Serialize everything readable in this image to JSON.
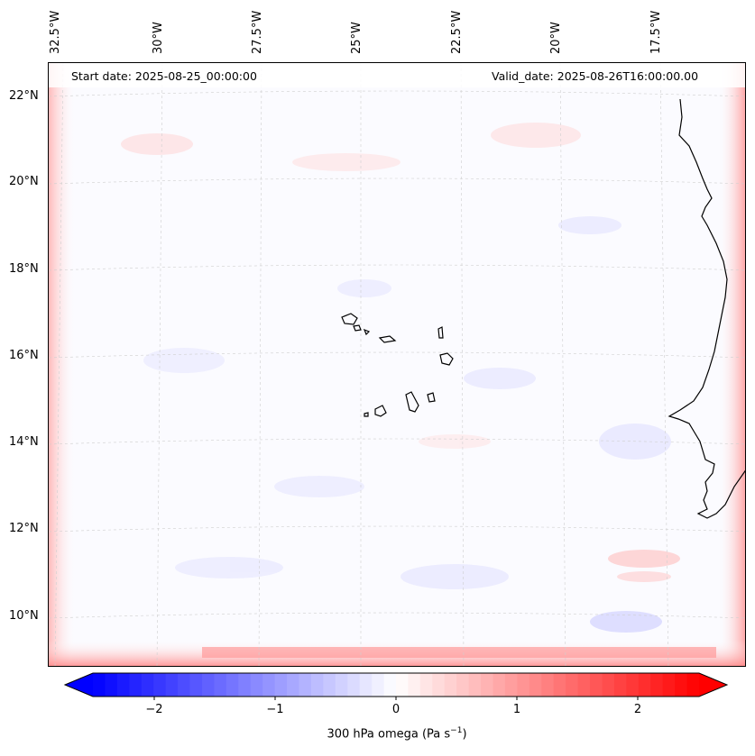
{
  "map": {
    "start_date": "Start date: 2025-08-25_00:00:00",
    "valid_date": "Valid_date: 2025-08-26T16:00:00.00",
    "lon_labels": [
      "32.5°W",
      "30°W",
      "27.5°W",
      "25°W",
      "22.5°W",
      "20°W",
      "17.5°W"
    ],
    "lat_labels": [
      "22°N",
      "20°N",
      "18°N",
      "16°N",
      "14°N",
      "12°N",
      "10°N"
    ],
    "colors": {
      "negative": "#0000ff",
      "neutral": "#ffffff",
      "positive": "#ff0000",
      "coast": "#000000"
    }
  },
  "colorbar": {
    "ticks": [
      "−2",
      "−1",
      "0",
      "1",
      "2"
    ],
    "range": [
      -2.5,
      2.5
    ],
    "label_prefix": "300 hPa omega (Pa s",
    "label_sup": "−1",
    "label_suffix": ")"
  }
}
